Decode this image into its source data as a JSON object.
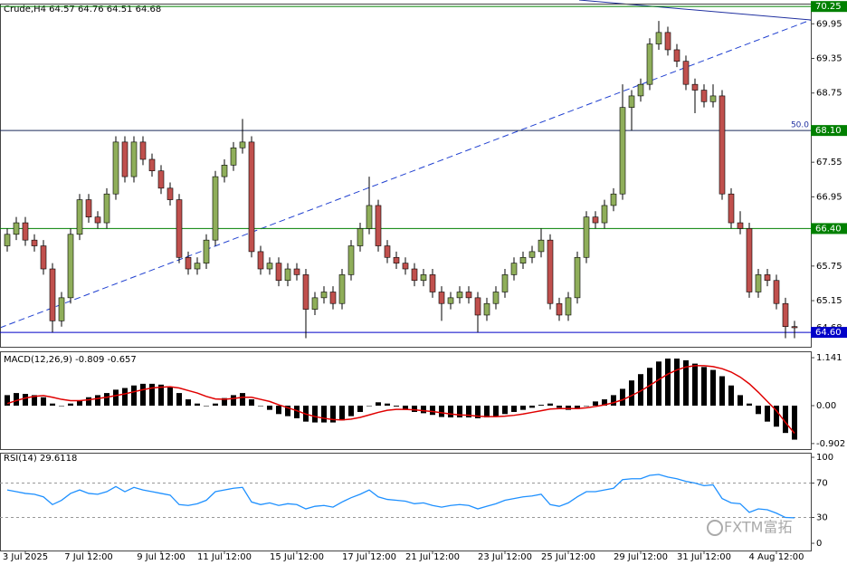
{
  "chart_data": [
    {
      "type": "candlestick",
      "title": "Crude,H4  64.57 64.76 64.51 64.68",
      "categories": [
        null,
        null,
        "3 Jul 2025",
        null,
        null,
        null,
        null,
        null,
        null,
        "7 Jul 12:00",
        null,
        null,
        null,
        null,
        null,
        null,
        null,
        "9 Jul 12:00",
        null,
        null,
        null,
        null,
        null,
        null,
        "11 Jul 12:00",
        null,
        null,
        null,
        null,
        null,
        null,
        null,
        "15 Jul 12:00",
        null,
        null,
        null,
        null,
        null,
        null,
        null,
        "17 Jul 12:00",
        null,
        null,
        null,
        null,
        null,
        null,
        "21 Jul 12:00",
        null,
        null,
        null,
        null,
        null,
        null,
        null,
        "23 Jul 12:00",
        null,
        null,
        null,
        null,
        null,
        null,
        "25 Jul 12:00",
        null,
        null,
        null,
        null,
        null,
        null,
        null,
        "29 Jul 12:00",
        null,
        null,
        null,
        null,
        null,
        null,
        "31 Jul 12:00",
        null,
        null,
        null,
        null,
        null,
        null,
        null,
        "4 Aug 12:00",
        null,
        null
      ],
      "open": [
        66.1,
        66.3,
        66.5,
        66.2,
        66.1,
        65.7,
        64.8,
        65.2,
        66.3,
        66.9,
        66.6,
        66.5,
        67.0,
        67.9,
        67.3,
        67.9,
        67.6,
        67.4,
        67.1,
        66.9,
        65.9,
        65.7,
        65.8,
        66.2,
        67.3,
        67.5,
        67.8,
        67.9,
        66.0,
        65.7,
        65.8,
        65.5,
        65.7,
        65.6,
        65.0,
        65.2,
        65.3,
        65.1,
        65.6,
        66.1,
        66.4,
        66.8,
        66.1,
        65.9,
        65.8,
        65.7,
        65.5,
        65.6,
        65.3,
        65.1,
        65.2,
        65.3,
        65.2,
        64.9,
        65.1,
        65.3,
        65.6,
        65.8,
        65.9,
        66.0,
        66.2,
        65.1,
        64.9,
        65.2,
        65.9,
        66.6,
        66.5,
        66.8,
        67.0,
        68.5,
        68.7,
        68.9,
        69.6,
        69.8,
        69.5,
        69.3,
        68.9,
        68.8,
        68.6,
        68.7,
        67.0,
        66.5,
        66.4,
        65.3,
        65.6,
        65.5,
        65.1,
        64.7
      ],
      "high": [
        66.4,
        66.6,
        66.6,
        66.3,
        66.2,
        65.8,
        65.3,
        66.4,
        67.0,
        67.0,
        66.7,
        67.1,
        68.0,
        68.0,
        68.0,
        68.0,
        67.7,
        67.5,
        67.2,
        67.0,
        66.0,
        65.9,
        66.3,
        67.4,
        67.6,
        67.9,
        68.3,
        68.0,
        66.1,
        65.9,
        65.9,
        65.8,
        65.8,
        65.7,
        65.3,
        65.4,
        65.4,
        65.7,
        66.2,
        66.5,
        67.3,
        66.9,
        66.2,
        66.0,
        65.9,
        65.8,
        65.7,
        65.7,
        65.4,
        65.3,
        65.4,
        65.4,
        65.3,
        65.2,
        65.4,
        65.7,
        65.9,
        66.0,
        66.1,
        66.4,
        66.3,
        65.2,
        65.3,
        66.0,
        66.7,
        66.7,
        66.9,
        67.1,
        68.9,
        68.8,
        69.0,
        69.7,
        70.0,
        69.9,
        69.6,
        69.4,
        69.0,
        68.9,
        68.9,
        68.8,
        67.1,
        66.7,
        66.5,
        65.7,
        65.7,
        65.6,
        65.2,
        64.8
      ],
      "low": [
        66.0,
        66.2,
        66.1,
        66.0,
        65.6,
        64.6,
        64.7,
        65.1,
        66.2,
        66.5,
        66.4,
        66.4,
        66.9,
        67.2,
        67.2,
        67.5,
        67.3,
        67.0,
        66.8,
        65.8,
        65.6,
        65.6,
        65.7,
        66.1,
        67.2,
        67.4,
        67.7,
        65.9,
        65.6,
        65.6,
        65.4,
        65.4,
        65.5,
        64.5,
        64.9,
        65.1,
        65.0,
        65.0,
        65.5,
        66.0,
        66.3,
        66.0,
        65.8,
        65.7,
        65.6,
        65.4,
        65.4,
        65.2,
        64.8,
        65.0,
        65.1,
        65.1,
        64.6,
        64.8,
        65.0,
        65.2,
        65.5,
        65.7,
        65.8,
        65.9,
        65.0,
        64.8,
        64.8,
        65.1,
        65.8,
        66.4,
        66.4,
        66.7,
        66.9,
        68.1,
        68.6,
        68.8,
        69.5,
        69.4,
        69.2,
        68.8,
        68.4,
        68.5,
        68.5,
        66.9,
        66.4,
        66.3,
        65.2,
        65.2,
        65.4,
        65.0,
        64.5,
        64.5
      ],
      "close": [
        66.3,
        66.5,
        66.2,
        66.1,
        65.7,
        64.8,
        65.2,
        66.3,
        66.9,
        66.6,
        66.5,
        67.0,
        67.9,
        67.3,
        67.9,
        67.6,
        67.4,
        67.1,
        66.9,
        65.9,
        65.7,
        65.8,
        66.2,
        67.3,
        67.5,
        67.8,
        67.9,
        66.0,
        65.7,
        65.8,
        65.5,
        65.7,
        65.6,
        65.0,
        65.2,
        65.3,
        65.1,
        65.6,
        66.1,
        66.4,
        66.8,
        66.1,
        65.9,
        65.8,
        65.7,
        65.5,
        65.6,
        65.3,
        65.1,
        65.2,
        65.3,
        65.2,
        64.9,
        65.1,
        65.3,
        65.6,
        65.8,
        65.9,
        66.0,
        66.2,
        65.1,
        64.9,
        65.2,
        65.9,
        66.6,
        66.5,
        66.8,
        67.0,
        68.5,
        68.7,
        68.9,
        69.6,
        69.8,
        69.5,
        69.3,
        68.9,
        68.8,
        68.6,
        68.7,
        67.0,
        66.5,
        66.4,
        65.3,
        65.6,
        65.5,
        65.1,
        64.7,
        64.68
      ],
      "up_color": "#8fae5a",
      "down_color": "#c0504d",
      "ylim": [
        64.35,
        70.3
      ],
      "yticks": [
        69.95,
        69.35,
        68.75,
        67.55,
        66.95,
        65.75,
        65.15,
        64.68
      ],
      "levels": [
        {
          "value": 70.25,
          "color": "#008000",
          "box_color": "#008000"
        },
        {
          "value": 68.1,
          "label": "68.10",
          "color": "#1a2a5a",
          "box_color": "#008000",
          "note": "50.0"
        },
        {
          "value": 66.4,
          "label": "66.40",
          "color": "#008000",
          "box_color": "#008000"
        },
        {
          "value": 64.6,
          "label": "64.60",
          "color": "#0000c8",
          "box_color": "#0000c8"
        }
      ],
      "watermark": "FXTM富拓"
    },
    {
      "type": "macd",
      "title": "MACD(12,26,9) -0.809 -0.657",
      "series": [
        {
          "color": "#000000",
          "values": [
            0.25,
            0.3,
            0.28,
            0.25,
            0.2,
            0.05,
            0.0,
            0.05,
            0.12,
            0.2,
            0.25,
            0.3,
            0.38,
            0.42,
            0.48,
            0.52,
            0.52,
            0.5,
            0.45,
            0.3,
            0.15,
            0.05,
            0.0,
            0.05,
            0.18,
            0.25,
            0.3,
            0.15,
            0.0,
            -0.1,
            -0.2,
            -0.25,
            -0.3,
            -0.38,
            -0.4,
            -0.4,
            -0.4,
            -0.35,
            -0.25,
            -0.15,
            0.0,
            0.08,
            0.05,
            -0.02,
            -0.1,
            -0.15,
            -0.18,
            -0.22,
            -0.27,
            -0.28,
            -0.28,
            -0.28,
            -0.3,
            -0.28,
            -0.25,
            -0.2,
            -0.15,
            -0.1,
            -0.05,
            0.02,
            0.05,
            -0.05,
            -0.1,
            -0.08,
            0.0,
            0.1,
            0.15,
            0.25,
            0.4,
            0.6,
            0.75,
            0.9,
            1.05,
            1.12,
            1.12,
            1.08,
            1.0,
            0.92,
            0.85,
            0.7,
            0.48,
            0.25,
            0.05,
            -0.2,
            -0.38,
            -0.5,
            -0.65,
            -0.809
          ]
        },
        {
          "color": "#e00000",
          "values": [
            0.05,
            0.12,
            0.18,
            0.22,
            0.24,
            0.2,
            0.15,
            0.12,
            0.12,
            0.14,
            0.17,
            0.2,
            0.24,
            0.28,
            0.33,
            0.38,
            0.42,
            0.44,
            0.45,
            0.42,
            0.36,
            0.3,
            0.22,
            0.16,
            0.15,
            0.17,
            0.2,
            0.2,
            0.15,
            0.1,
            0.02,
            -0.05,
            -0.12,
            -0.2,
            -0.26,
            -0.3,
            -0.33,
            -0.34,
            -0.32,
            -0.28,
            -0.22,
            -0.16,
            -0.11,
            -0.09,
            -0.09,
            -0.1,
            -0.12,
            -0.14,
            -0.17,
            -0.2,
            -0.22,
            -0.23,
            -0.25,
            -0.26,
            -0.26,
            -0.25,
            -0.23,
            -0.2,
            -0.16,
            -0.12,
            -0.08,
            -0.07,
            -0.07,
            -0.07,
            -0.05,
            -0.02,
            0.02,
            0.07,
            0.14,
            0.24,
            0.35,
            0.48,
            0.62,
            0.75,
            0.85,
            0.92,
            0.95,
            0.95,
            0.93,
            0.88,
            0.8,
            0.68,
            0.52,
            0.32,
            0.1,
            -0.12,
            -0.4,
            -0.657
          ]
        }
      ],
      "ylim": [
        -1.034,
        1.293
      ],
      "yticks": [
        1.141,
        {
          "value": 0,
          "label": "0.00"
        },
        -0.902
      ]
    },
    {
      "type": "line",
      "title": "RSI(14) 29.6118",
      "series": [
        {
          "color": "#1e90ff",
          "values": [
            62,
            60,
            58,
            57,
            54,
            45,
            50,
            58,
            62,
            58,
            57,
            60,
            66,
            60,
            65,
            62,
            60,
            58,
            56,
            45,
            44,
            46,
            50,
            60,
            62,
            64,
            65,
            48,
            45,
            47,
            44,
            46,
            45,
            40,
            43,
            44,
            42,
            48,
            53,
            57,
            62,
            54,
            51,
            50,
            49,
            46,
            47,
            44,
            42,
            44,
            45,
            44,
            40,
            43,
            46,
            50,
            52,
            54,
            55,
            57,
            45,
            43,
            47,
            54,
            60,
            60,
            62,
            64,
            74,
            75,
            75,
            79,
            80,
            77,
            75,
            72,
            70,
            67,
            68,
            52,
            47,
            46,
            36,
            40,
            39,
            35,
            30,
            29.6118
          ]
        }
      ],
      "ylim": [
        -8.4,
        105.3
      ],
      "yticks": [
        100,
        70,
        30,
        0
      ],
      "grid_levels": [
        70,
        30
      ]
    }
  ]
}
